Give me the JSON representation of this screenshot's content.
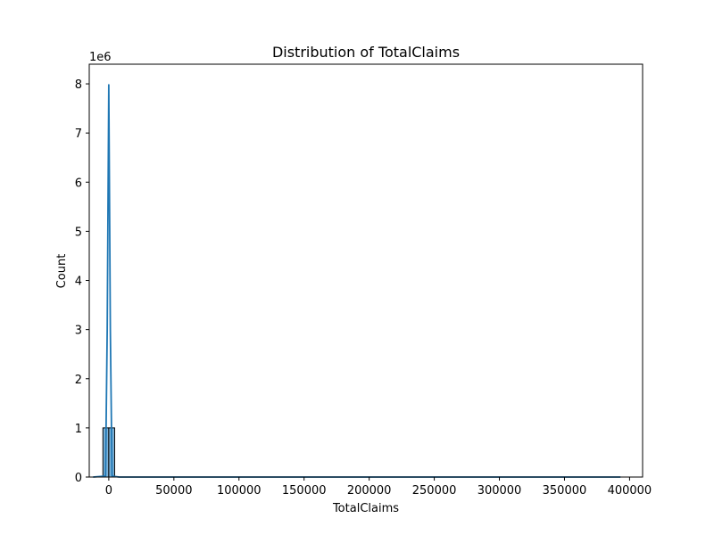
{
  "chart_data": {
    "type": "bar",
    "title": "Distribution of TotalClaims",
    "xlabel": "TotalClaims",
    "ylabel": "Count",
    "y_offset_text": "1e6",
    "xlim": [
      -15000,
      410000
    ],
    "ylim": [
      0,
      8.4
    ],
    "x_ticks": [
      0,
      50000,
      100000,
      150000,
      200000,
      250000,
      300000,
      350000,
      400000
    ],
    "x_tick_labels": [
      "0",
      "50000",
      "100000",
      "150000",
      "200000",
      "250000",
      "300000",
      "350000",
      "400000"
    ],
    "y_ticks": [
      0,
      1,
      2,
      3,
      4,
      5,
      6,
      7,
      8
    ],
    "y_tick_labels": [
      "0",
      "1",
      "2",
      "3",
      "4",
      "5",
      "6",
      "7",
      "8"
    ],
    "histogram": {
      "bin_edges": [
        -4500,
        0,
        4500
      ],
      "counts": [
        1.0,
        1.0
      ],
      "bar_color": "#7fb3d8",
      "edge_color": "#000000"
    },
    "kde_line": {
      "color": "#1f77b4",
      "x": [
        -12000,
        -2500,
        -1200,
        0,
        1200,
        2500,
        8000,
        393000
      ],
      "y": [
        0,
        0.02,
        3.0,
        7.98,
        3.0,
        0.02,
        0,
        0
      ]
    },
    "grid": false,
    "legend": "none"
  }
}
